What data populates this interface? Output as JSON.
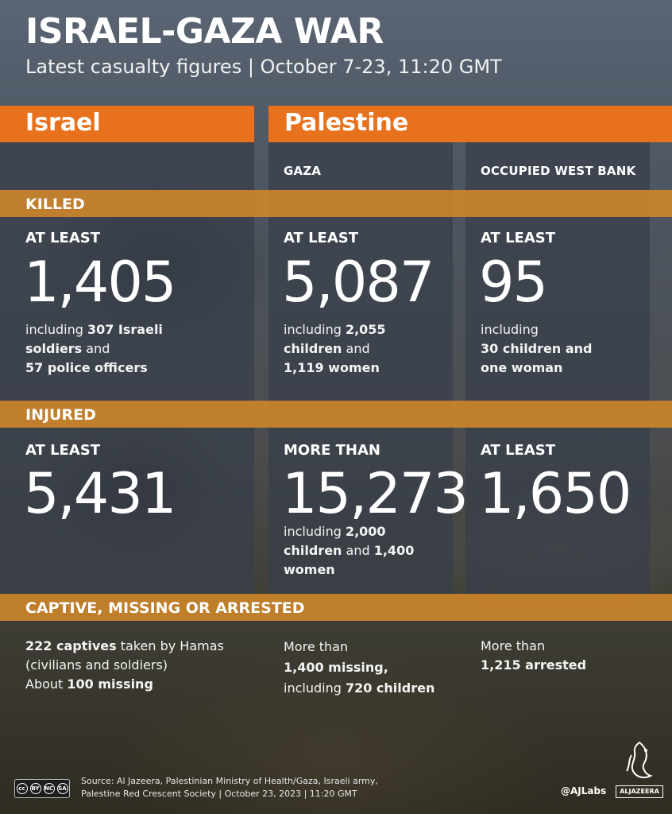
{
  "header": {
    "title": "ISRAEL-GAZA WAR",
    "subtitle": "Latest casualty figures  |  October 7-23, 11:20 GMT"
  },
  "regions": {
    "israel": "Israel",
    "palestine": "Palestine",
    "gaza": "GAZA",
    "west_bank": "OCCUPIED WEST BANK"
  },
  "sections": {
    "killed": "KILLED",
    "injured": "INJURED",
    "captive": "CAPTIVE, MISSING OR ARRESTED"
  },
  "killed": {
    "israel": {
      "qualifier": "AT LEAST",
      "value": "1,405",
      "note": [
        "including ",
        "307 Israeli",
        "soldiers",
        " and",
        "57 police officers"
      ]
    },
    "gaza": {
      "qualifier": "AT LEAST",
      "value": "5,087",
      "note": [
        "including ",
        "2,055",
        "children",
        " and",
        "1,119 women"
      ]
    },
    "west_bank": {
      "qualifier": "AT LEAST",
      "value": "95",
      "note": [
        "including",
        "30 children and",
        "one woman"
      ]
    }
  },
  "injured": {
    "israel": {
      "qualifier": "AT LEAST",
      "value": "5,431"
    },
    "gaza": {
      "qualifier": "MORE THAN",
      "value": "15,273",
      "note": [
        "including ",
        "2,000",
        "children",
        " and ",
        "1,400",
        "women"
      ]
    },
    "west_bank": {
      "qualifier": "AT LEAST",
      "value": "1,650"
    }
  },
  "captive": {
    "israel": {
      "line1_bold": "222 captives",
      "line1_rest": " taken by Hamas",
      "line2": "(civilians and soldiers)",
      "line3_pre": "About ",
      "line3_bold": "100 missing"
    },
    "gaza": {
      "line1": "More than",
      "line2_bold": "1,400 missing,",
      "line3_pre": "including ",
      "line3_bold": "720 children"
    },
    "west_bank": {
      "line1": "More than",
      "line2_bold": "1,215 arrested"
    }
  },
  "footer": {
    "source_line1": "Source: Al Jazeera, Palestinian Ministry of Health/Gaza, Israeli army,",
    "source_line2": "Palestine Red Crescent Society  |  October 23, 2023  |  11:20 GMT",
    "handle": "@AJLabs",
    "logo_text": "ALJAZEERA",
    "license": [
      "cc",
      "BY",
      "NC",
      "SA"
    ]
  },
  "colors": {
    "orange": "#e8711d",
    "amber": "#d68928",
    "panel": "#373e4a"
  }
}
